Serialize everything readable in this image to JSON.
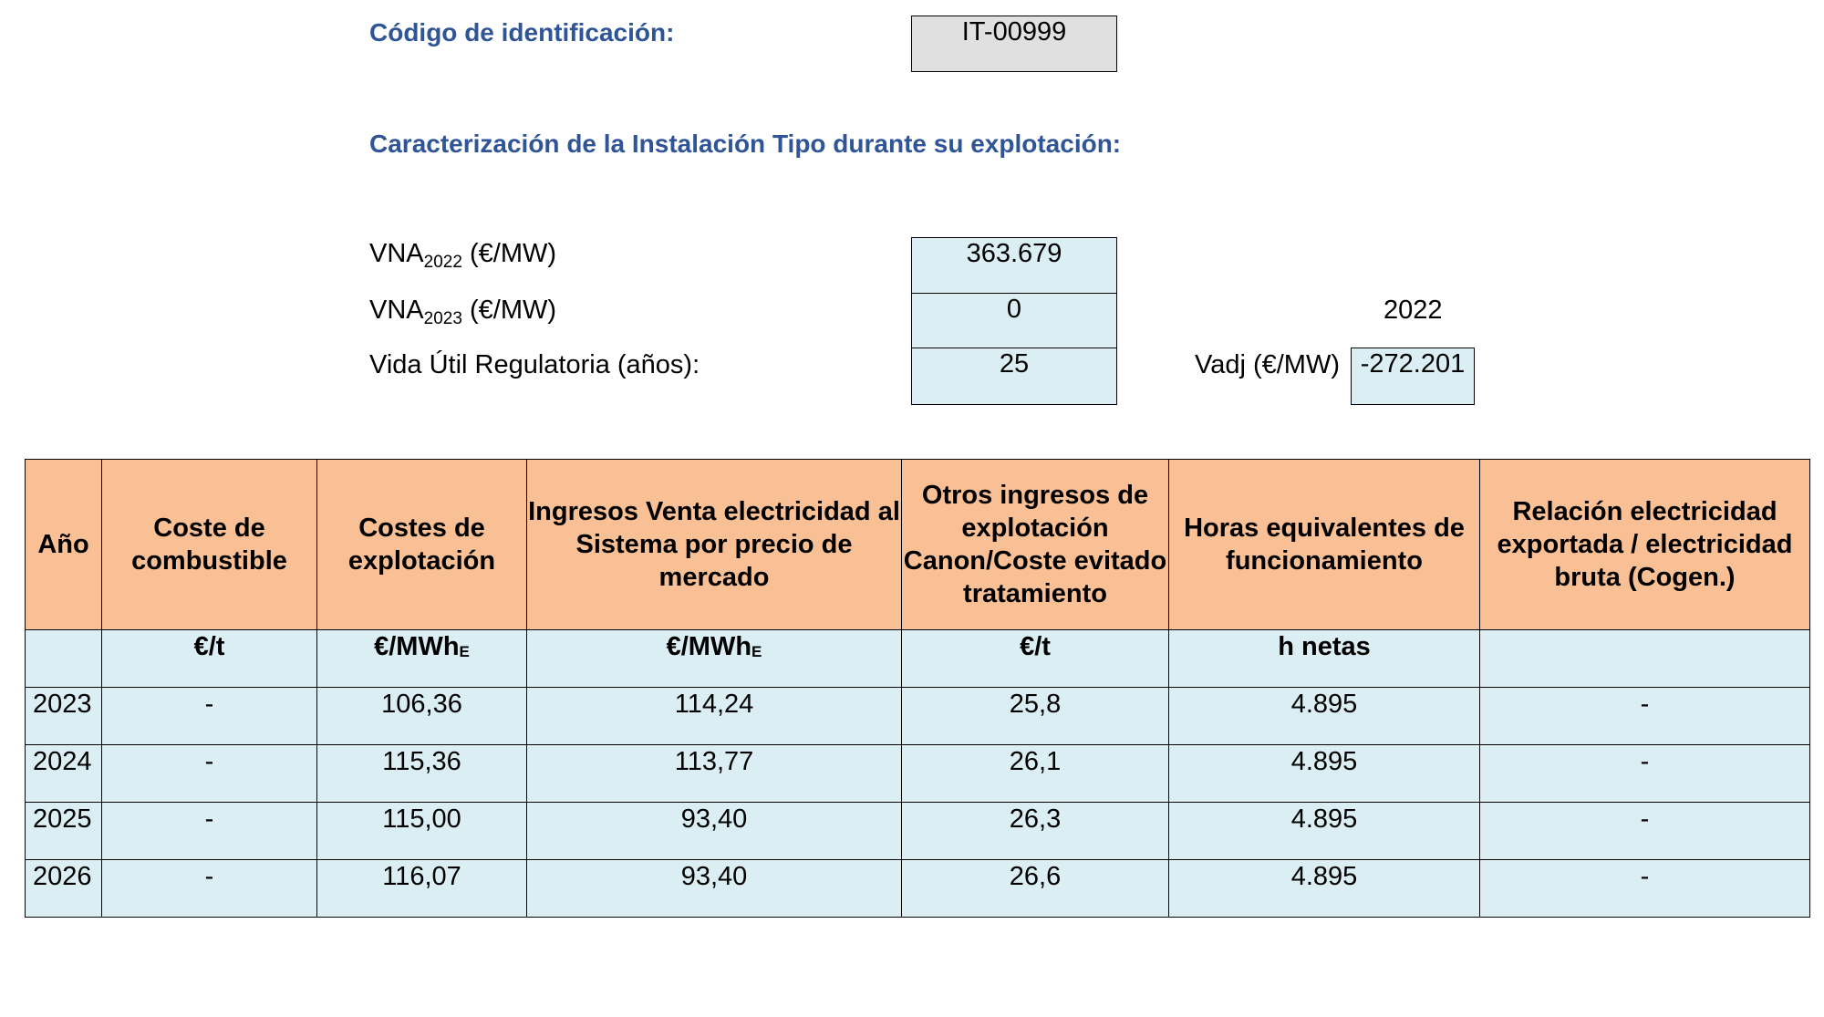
{
  "header": {
    "id_label": "Código de identificación:",
    "id_value": "IT-00999",
    "section_title": "Caracterización de la Instalación Tipo durante su explotación:"
  },
  "params": {
    "vna_base": "VNA",
    "vna1_sub": "2022",
    "vna1_unit": " (€/MW)",
    "vna1_value": "363.679",
    "vna2_sub": "2023",
    "vna2_unit": " (€/MW)",
    "vna2_value": "0",
    "year_label": "2022",
    "vida_label": "Vida Útil Regulatoria (años):",
    "vida_value": "25",
    "vadj_label": "Vadj (€/MW)",
    "vadj_value": "-272.201"
  },
  "table": {
    "headers": [
      "Año",
      "Coste de combustible",
      "Costes de explotación",
      "Ingresos Venta electricidad al Sistema por precio de mercado",
      "Otros ingresos de explotación Canon/Coste evitado tratamiento",
      "Horas equivalentes de funcionamiento",
      "Relación electricidad exportada / electricidad bruta (Cogen.)"
    ],
    "units": {
      "combustible": "€/t",
      "explotacion": "€/MWh",
      "explotacion_sub": "E",
      "ingresos": "€/MWh",
      "ingresos_sub": "E",
      "otros": "€/t",
      "horas": "h netas"
    },
    "rows": [
      [
        "2023",
        "-",
        "106,36",
        "114,24",
        "25,8",
        "4.895",
        "-"
      ],
      [
        "2024",
        "-",
        "115,36",
        "113,77",
        "26,1",
        "4.895",
        "-"
      ],
      [
        "2025",
        "-",
        "115,00",
        "93,40",
        "26,3",
        "4.895",
        "-"
      ],
      [
        "2026",
        "-",
        "116,07",
        "93,40",
        "26,6",
        "4.895",
        "-"
      ]
    ]
  },
  "colors": {
    "heading": "#2f5597",
    "header_fill": "#f8c094",
    "cell_fill": "#dbeef4",
    "id_fill": "#e0e0e0"
  }
}
